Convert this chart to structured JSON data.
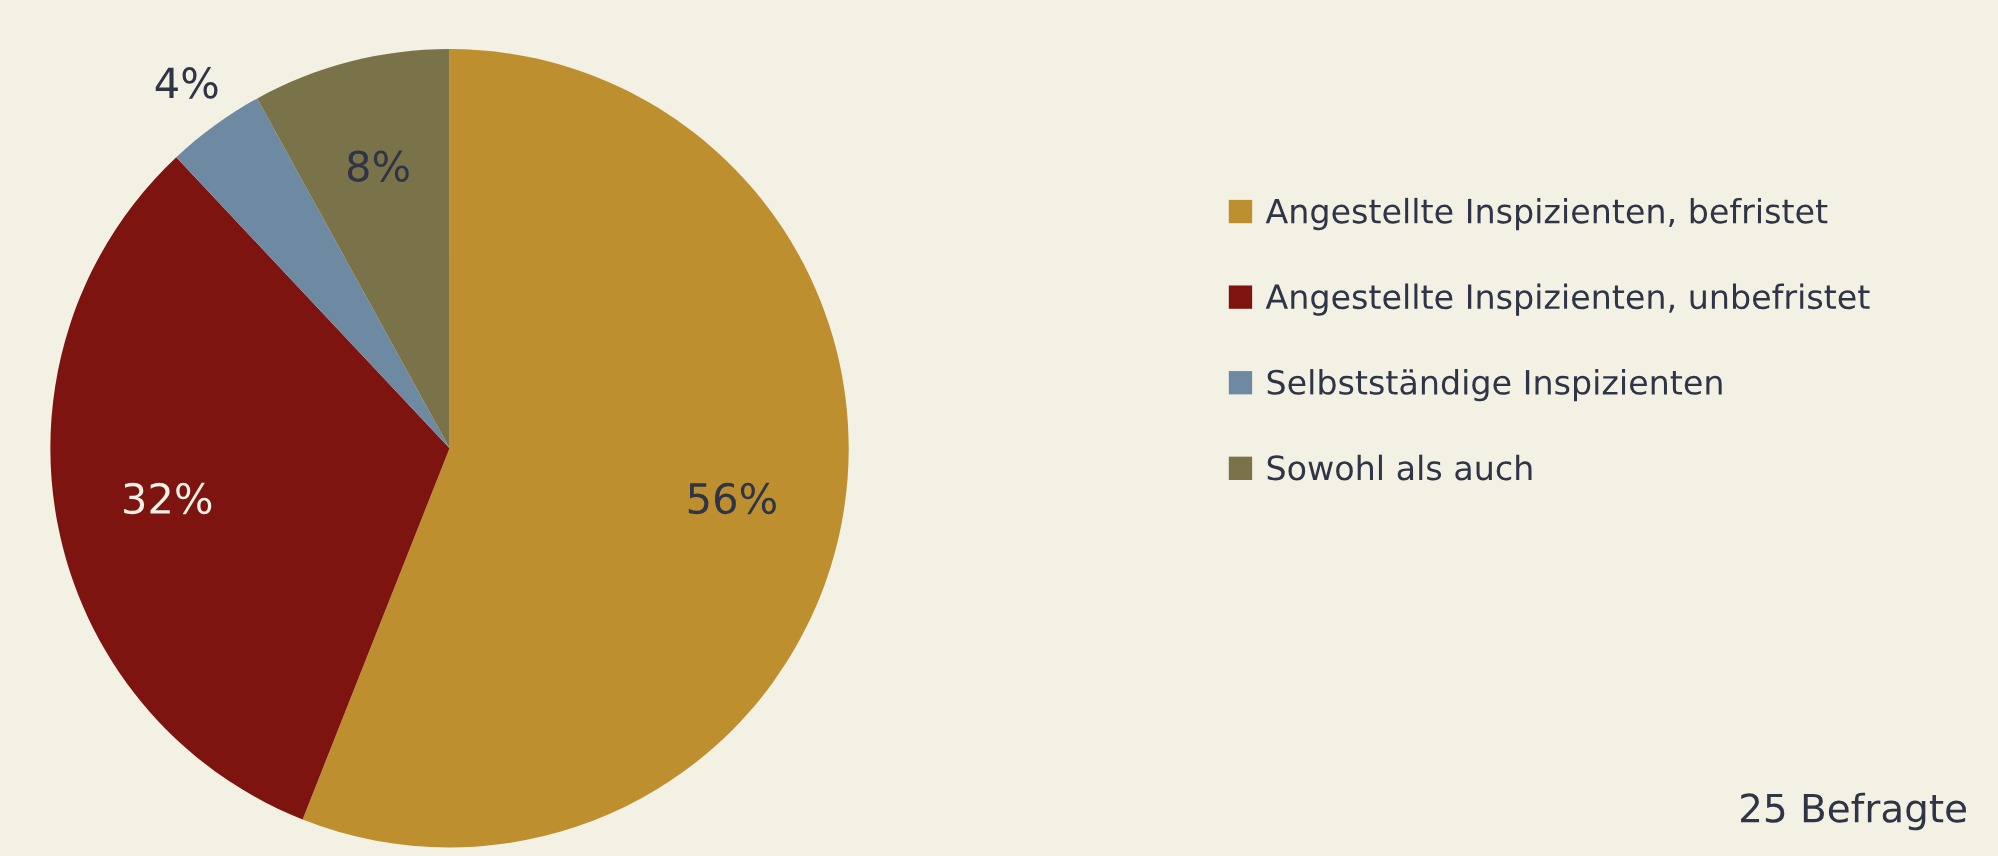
{
  "chart_data": {
    "type": "pie",
    "categories": [
      "Angestellte Inspizienten, befristet",
      "Angestellte Inspizienten, unbefristet",
      "Selbstständige Inspizienten",
      "Sowohl als auch"
    ],
    "values": [
      56,
      32,
      4,
      8
    ],
    "colors": [
      "#be8f2f",
      "#7d1410",
      "#6e8aa3",
      "#7a7248"
    ],
    "value_labels": [
      "56%",
      "32%",
      "4%",
      "8%"
    ],
    "legend": "right",
    "annotations": [
      "25 Befragte"
    ]
  }
}
